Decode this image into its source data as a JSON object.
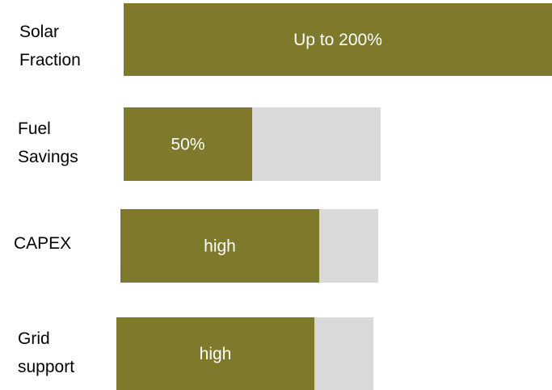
{
  "chart_data": {
    "type": "bar",
    "orientation": "horizontal",
    "categories": [
      "Solar Fraction",
      "Fuel Savings",
      "CAPEX",
      "Grid support"
    ],
    "category_label_lines": [
      [
        "Solar",
        "Fraction"
      ],
      [
        "Fuel",
        "Savings"
      ],
      [
        "CAPEX"
      ],
      [
        "Grid",
        "support"
      ]
    ],
    "values": [
      1.0,
      0.5,
      0.77,
      0.77
    ],
    "value_labels": [
      "Up to 200%",
      "50%",
      "high",
      "high"
    ],
    "background_track": true,
    "grid": false,
    "legend": "none",
    "colors": {
      "fill": "#7f7a2b",
      "track": "#d9d9d9",
      "label_text": "#ffffff",
      "category_text": "#000000"
    }
  }
}
